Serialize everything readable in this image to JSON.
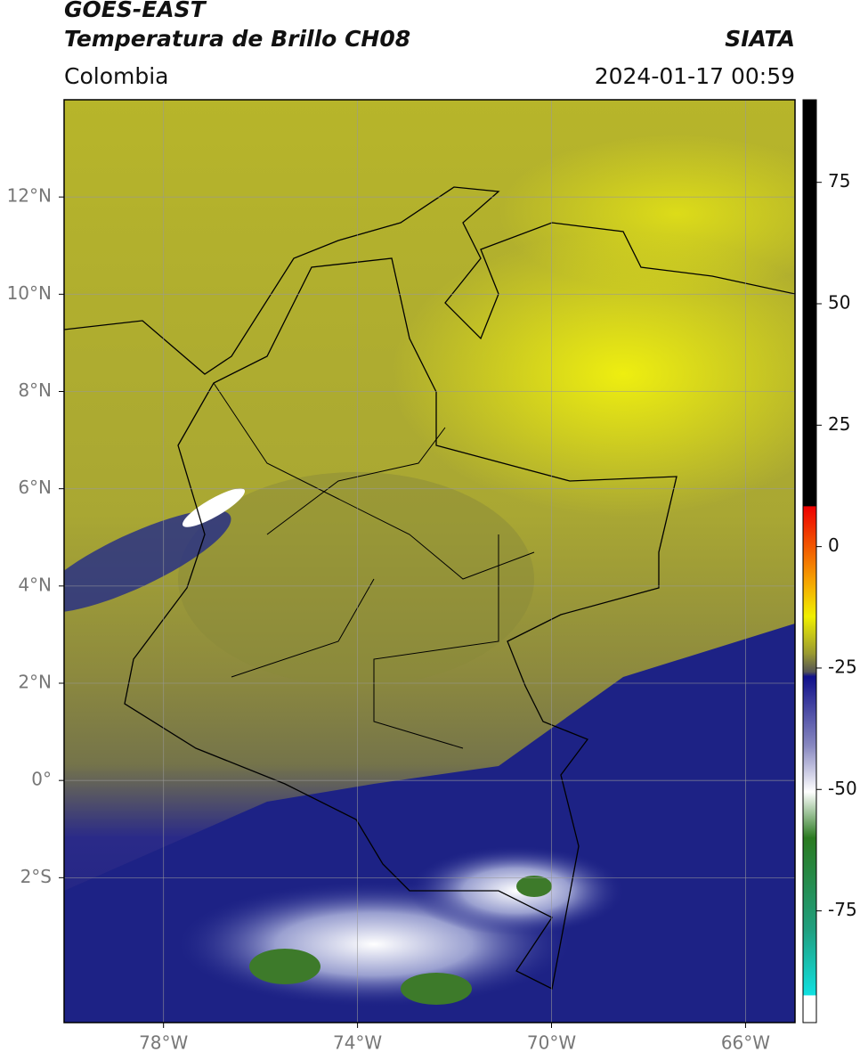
{
  "header": {
    "title": "GOES-EAST",
    "subtitle": "Temperatura de Brillo CH08",
    "source": "SIATA",
    "region": "Colombia",
    "datetime": "2024-01-17 00:59"
  },
  "map": {
    "xlim": [
      -80.05,
      -64.98
    ],
    "ylim": [
      -4.98,
      14.0
    ],
    "xticks": [
      {
        "value": -78,
        "label": "78°W"
      },
      {
        "value": -74,
        "label": "74°W"
      },
      {
        "value": -70,
        "label": "70°W"
      },
      {
        "value": -66,
        "label": "66°W"
      }
    ],
    "yticks": [
      {
        "value": 12,
        "label": "12°N"
      },
      {
        "value": 10,
        "label": "10°N"
      },
      {
        "value": 8,
        "label": "8°N"
      },
      {
        "value": 6,
        "label": "6°N"
      },
      {
        "value": 4,
        "label": "4°N"
      },
      {
        "value": 2,
        "label": "2°N"
      },
      {
        "value": 0,
        "label": "0°"
      },
      {
        "value": -2,
        "label": "2°S"
      }
    ],
    "grid": true
  },
  "colorbar": {
    "range": [
      -98,
      92
    ],
    "ticks": [
      75,
      50,
      25,
      0,
      -25,
      -50,
      -75
    ]
  }
}
